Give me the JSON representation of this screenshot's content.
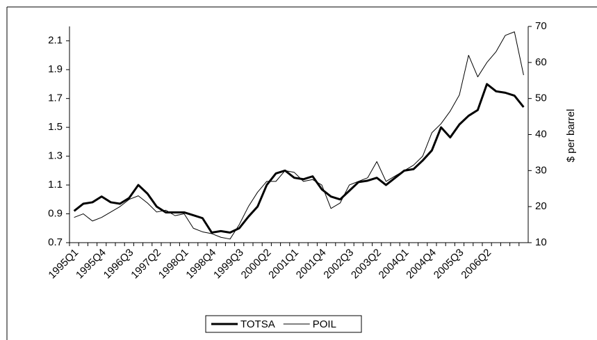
{
  "chart_data": {
    "type": "line",
    "categories": [
      "1995Q1",
      null,
      null,
      "1995Q4",
      null,
      null,
      "1996Q3",
      null,
      null,
      "1997Q2",
      null,
      null,
      "1998Q1",
      null,
      null,
      "1998Q4",
      null,
      null,
      "1999Q3",
      null,
      null,
      "2000Q2",
      null,
      null,
      "2001Q1",
      null,
      null,
      "2001Q4",
      null,
      null,
      "2002Q3",
      null,
      null,
      "2003Q2",
      null,
      null,
      "2004Q1",
      null,
      null,
      "2004Q4",
      null,
      null,
      "2005Q3",
      null,
      null,
      "2006Q2",
      null,
      null,
      null,
      null
    ],
    "series": [
      {
        "name": "TOTSA",
        "color": "#000000",
        "width": 3,
        "values": [
          0.92,
          0.97,
          0.98,
          1.02,
          0.98,
          0.97,
          1.01,
          1.1,
          1.04,
          0.95,
          0.91,
          0.91,
          0.91,
          0.89,
          0.87,
          0.77,
          0.78,
          0.77,
          0.8,
          0.88,
          0.95,
          1.1,
          1.18,
          1.2,
          1.15,
          1.14,
          1.16,
          1.07,
          1.02,
          1.0,
          1.06,
          1.12,
          1.13,
          1.15,
          1.1,
          1.15,
          1.2,
          1.21,
          1.27,
          1.34,
          1.5,
          1.43,
          1.52,
          1.58,
          1.62,
          1.8,
          1.75,
          1.74,
          1.72,
          1.64
        ]
      },
      {
        "name": "POIL",
        "color": "#000000",
        "width": 1,
        "axis": "y2",
        "values": [
          17,
          18,
          16,
          17,
          18.5,
          20,
          22,
          23,
          21,
          18.5,
          19,
          17.5,
          18,
          14,
          13,
          12.5,
          11.5,
          11,
          15,
          20,
          24,
          27,
          27,
          30,
          29.5,
          27,
          27.5,
          26,
          19.5,
          21,
          26,
          27,
          28,
          32.5,
          27,
          28.5,
          30,
          31.5,
          34,
          40.5,
          43,
          46.5,
          51,
          62,
          56,
          60,
          63,
          67.5,
          68.5,
          56.5
        ]
      }
    ],
    "ylim": [
      0.7,
      2.2
    ],
    "yticks": [
      0.7,
      0.9,
      1.1,
      1.3,
      1.5,
      1.7,
      1.9,
      2.1
    ],
    "y2lim": [
      10,
      70
    ],
    "y2ticks": [
      10,
      20,
      30,
      40,
      50,
      60,
      70
    ],
    "y2label": "$ per barrel",
    "grid": false,
    "legend": "bottom"
  }
}
